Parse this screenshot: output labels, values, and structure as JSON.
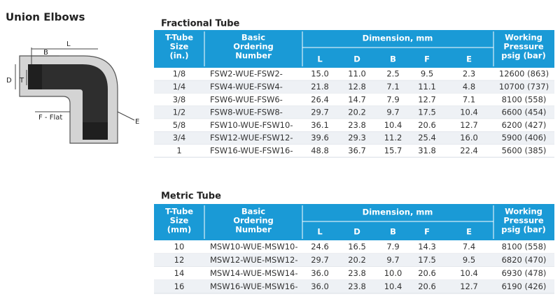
{
  "title": "Union Elbows",
  "diagram": {
    "labels": {
      "l": "L",
      "b": "B",
      "d": "D",
      "t": "T",
      "flat": "F - Flat",
      "e": "E"
    }
  },
  "tables": [
    {
      "title": "Fractional Tube",
      "headers": {
        "size": [
          "T-Tube",
          "Size",
          "(in.)"
        ],
        "number": [
          "Basic",
          "Ordering",
          "Number"
        ],
        "dimension": "Dimension, mm",
        "dims": [
          "L",
          "D",
          "B",
          "F",
          "E"
        ],
        "pressure": [
          "Working",
          "Pressure",
          "psig (bar)"
        ]
      },
      "rows": [
        [
          "1/8",
          "FSW2-WUE-FSW2-",
          "15.0",
          "11.0",
          "2.5",
          "9.5",
          "2.3",
          "12600 (863)"
        ],
        [
          "1/4",
          "FSW4-WUE-FSW4-",
          "21.8",
          "12.8",
          "7.1",
          "11.1",
          "4.8",
          "10700 (737)"
        ],
        [
          "3/8",
          "FSW6-WUE-FSW6-",
          "26.4",
          "14.7",
          "7.9",
          "12.7",
          "7.1",
          "8100 (558)"
        ],
        [
          "1/2",
          "FSW8-WUE-FSW8-",
          "29.7",
          "20.2",
          "9.7",
          "17.5",
          "10.4",
          "6600 (454)"
        ],
        [
          "5/8",
          "FSW10-WUE-FSW10-",
          "36.1",
          "23.8",
          "10.4",
          "20.6",
          "12.7",
          "6200 (427)"
        ],
        [
          "3/4",
          "FSW12-WUE-FSW12-",
          "39.6",
          "29.3",
          "11.2",
          "25.4",
          "16.0",
          "5900 (406)"
        ],
        [
          "1",
          "FSW16-WUE-FSW16-",
          "48.8",
          "36.7",
          "15.7",
          "31.8",
          "22.4",
          "5600 (385)"
        ]
      ]
    },
    {
      "title": "Metric Tube",
      "headers": {
        "size": [
          "T-Tube",
          "Size",
          "(mm)"
        ],
        "number": [
          "Basic",
          "Ordering",
          "Number"
        ],
        "dimension": "Dimension, mm",
        "dims": [
          "L",
          "D",
          "B",
          "F",
          "E"
        ],
        "pressure": [
          "Working",
          "Pressure",
          "psig (bar)"
        ]
      },
      "rows": [
        [
          "10",
          "MSW10-WUE-MSW10-",
          "24.6",
          "16.5",
          "7.9",
          "14.3",
          "7.4",
          "8100 (558)"
        ],
        [
          "12",
          "MSW12-WUE-MSW12-",
          "29.7",
          "20.2",
          "9.7",
          "17.5",
          "9.5",
          "6820 (470)"
        ],
        [
          "14",
          "MSW14-WUE-MSW14-",
          "36.0",
          "23.8",
          "10.0",
          "20.6",
          "10.4",
          "6930 (478)"
        ],
        [
          "16",
          "MSW16-WUE-MSW16-",
          "36.0",
          "23.8",
          "10.4",
          "20.6",
          "12.7",
          "6190 (426)"
        ]
      ]
    }
  ]
}
